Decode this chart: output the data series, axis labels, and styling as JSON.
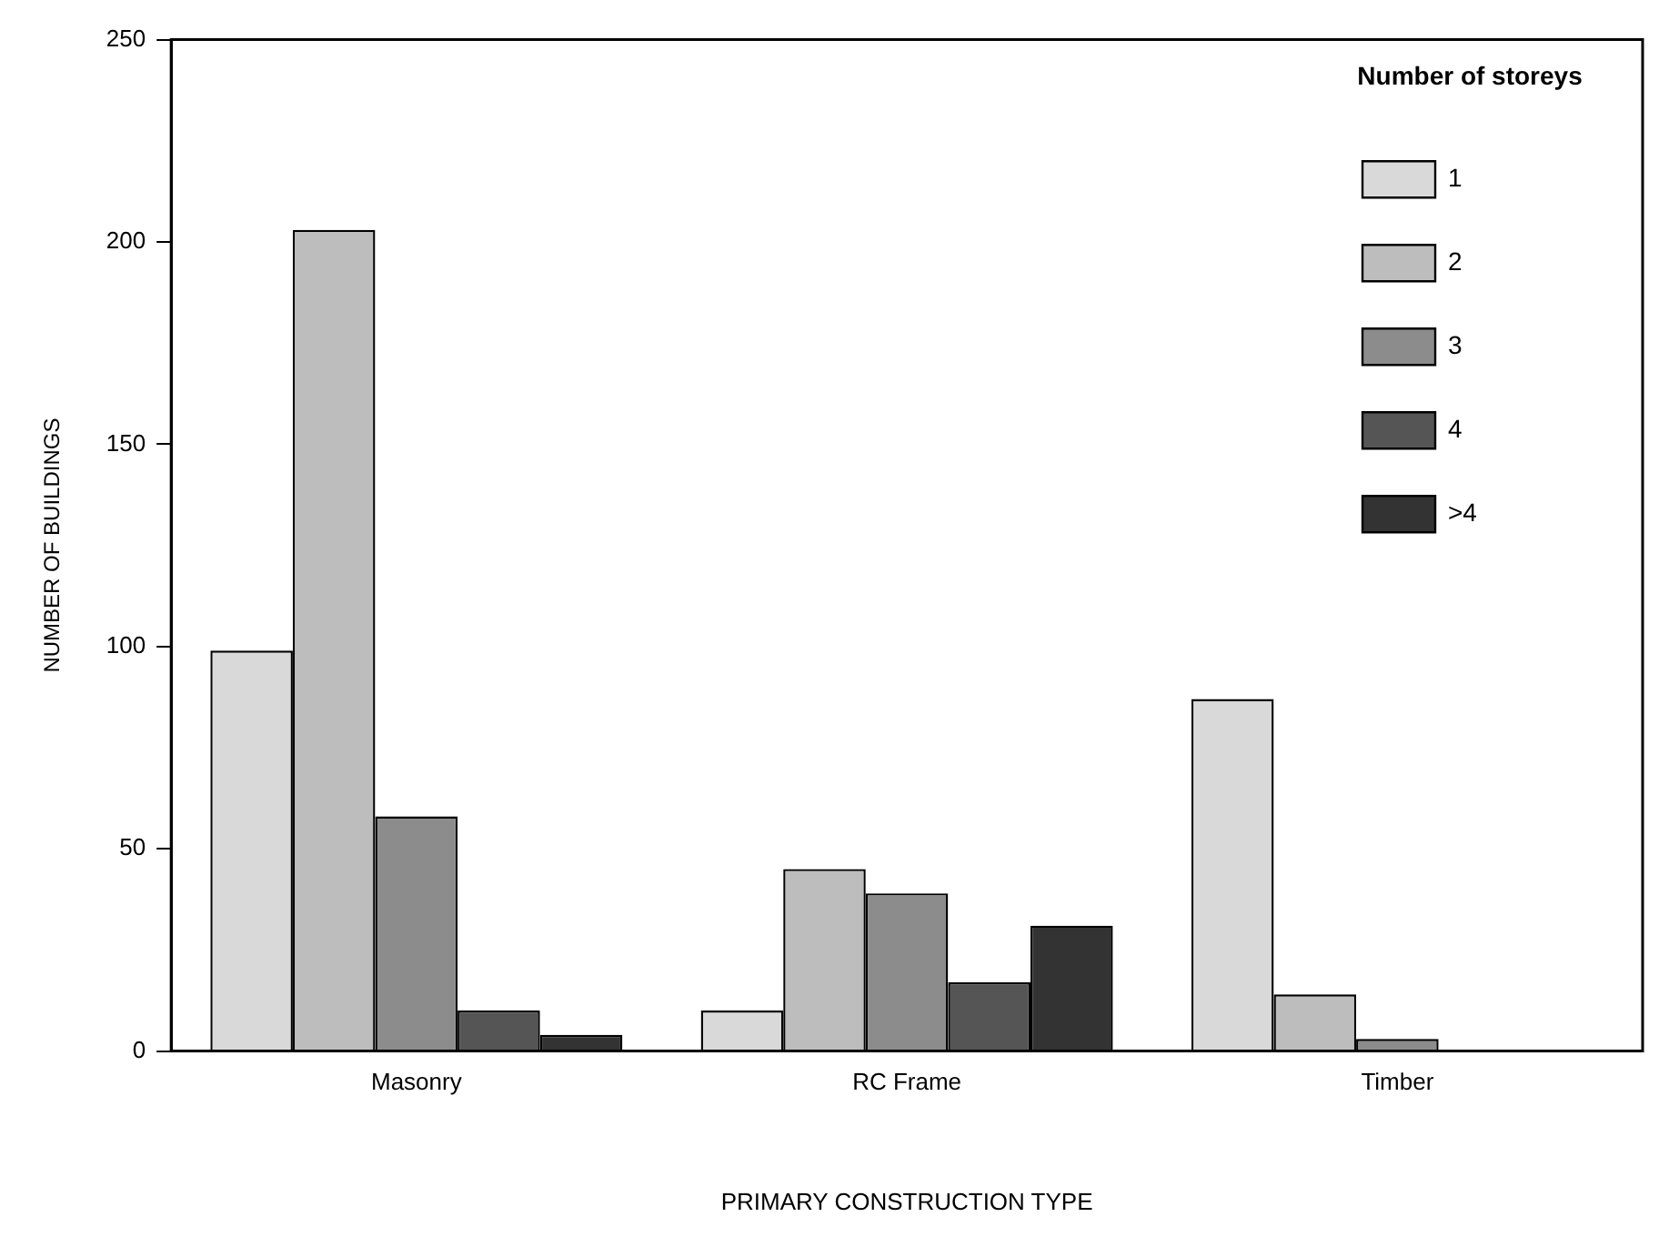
{
  "chart_data": {
    "type": "bar",
    "xlabel": "PRIMARY CONSTRUCTION TYPE",
    "ylabel": "NUMBER OF BUILDINGS",
    "legend_title": "Number of storeys",
    "categories": [
      "Masonry",
      "RC Frame",
      "Timber"
    ],
    "series": [
      {
        "name": "1",
        "color": "#d9d9d9",
        "values": [
          99,
          10,
          87
        ]
      },
      {
        "name": "2",
        "color": "#bdbdbd",
        "values": [
          203,
          45,
          14
        ]
      },
      {
        "name": "3",
        "color": "#8c8c8c",
        "values": [
          58,
          39,
          3
        ]
      },
      {
        "name": "4",
        "color": "#555555",
        "values": [
          10,
          17,
          null
        ]
      },
      {
        "name": ">4",
        "color": "#333333",
        "values": [
          4,
          31,
          null
        ]
      }
    ],
    "ylim": [
      0,
      250
    ],
    "yticks": [
      0,
      50,
      100,
      150,
      200,
      250
    ],
    "grid": false,
    "legend": "top right"
  }
}
